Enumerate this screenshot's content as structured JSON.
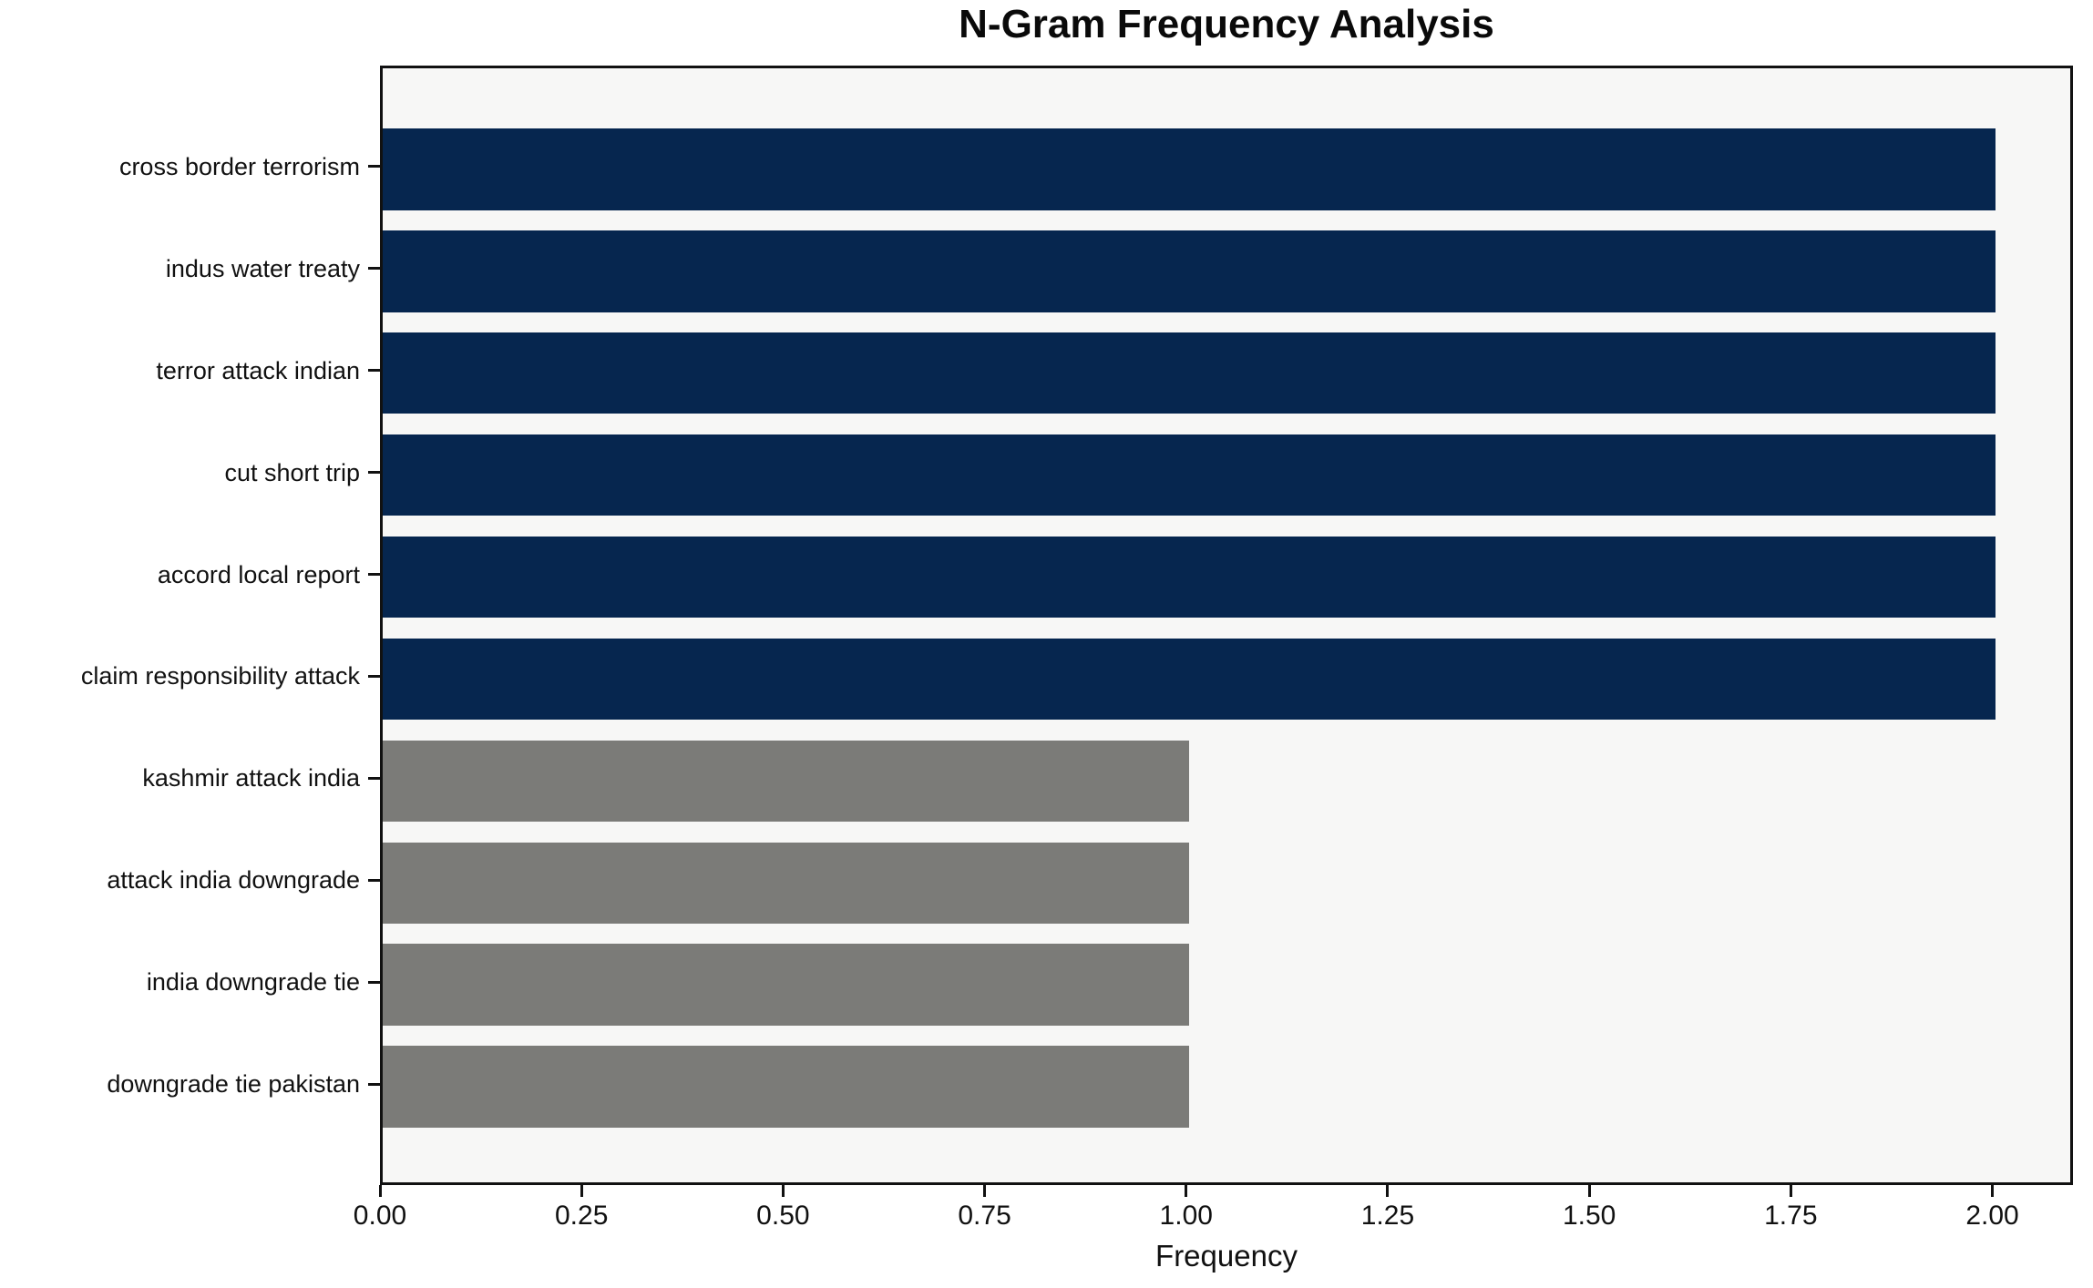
{
  "figure": {
    "background": "#ffffff",
    "plot_background": "#f7f7f6",
    "axis_color": "#111111"
  },
  "chart_data": {
    "type": "bar",
    "orientation": "horizontal",
    "title": "N-Gram Frequency Analysis",
    "xlabel": "Frequency",
    "ylabel": "",
    "categories": [
      "cross border terrorism",
      "indus water treaty",
      "terror attack indian",
      "cut short trip",
      "accord local report",
      "claim responsibility attack",
      "kashmir attack india",
      "attack india downgrade",
      "india downgrade tie",
      "downgrade tie pakistan"
    ],
    "values": [
      2,
      2,
      2,
      2,
      2,
      2,
      1,
      1,
      1,
      1
    ],
    "bar_colors": [
      "#06264f",
      "#06264f",
      "#06264f",
      "#06264f",
      "#06264f",
      "#06264f",
      "#7b7b78",
      "#7b7b78",
      "#7b7b78",
      "#7b7b78"
    ],
    "highlight_color": "#06264f",
    "muted_color": "#7b7b78",
    "xlim": [
      0,
      2.1
    ],
    "xticks": [
      {
        "value": 0.0,
        "label": "0.00"
      },
      {
        "value": 0.25,
        "label": "0.25"
      },
      {
        "value": 0.5,
        "label": "0.50"
      },
      {
        "value": 0.75,
        "label": "0.75"
      },
      {
        "value": 1.0,
        "label": "1.00"
      },
      {
        "value": 1.25,
        "label": "1.25"
      },
      {
        "value": 1.5,
        "label": "1.50"
      },
      {
        "value": 1.75,
        "label": "1.75"
      },
      {
        "value": 2.0,
        "label": "2.00"
      }
    ],
    "bar_height_fraction": 0.8,
    "y_edge_padding_units": 0.49,
    "grid": false,
    "legend": null
  }
}
